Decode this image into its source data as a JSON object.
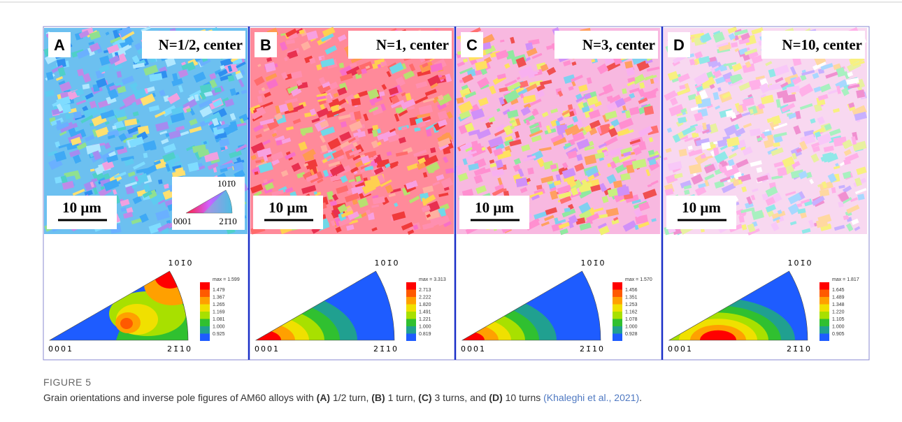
{
  "figure": {
    "panels": [
      {
        "letter": "A",
        "label": "N=1/2, center",
        "scale_bar": "10 μm",
        "ipf": {
          "top": "101̄0",
          "left": "0001",
          "right": "21̄10",
          "max": "max = 1.599",
          "levels": [
            "1.479",
            "1.367",
            "1.265",
            "1.169",
            "1.081",
            "1.000",
            "0.925"
          ]
        }
      },
      {
        "letter": "B",
        "label": "N=1, center",
        "scale_bar": "10 μm",
        "ipf": {
          "top": "101̄0",
          "left": "0001",
          "right": "21̄10",
          "max": "max = 3.313",
          "levels": [
            "2.713",
            "2.222",
            "1.820",
            "1.491",
            "1.221",
            "1.000",
            "0.819"
          ]
        }
      },
      {
        "letter": "C",
        "label": "N=3, center",
        "scale_bar": "10 μm",
        "ipf": {
          "top": "101̄0",
          "left": "0001",
          "right": "21̄10",
          "max": "max = 1.570",
          "levels": [
            "1.456",
            "1.351",
            "1.253",
            "1.162",
            "1.078",
            "1.000",
            "0.928"
          ]
        }
      },
      {
        "letter": "D",
        "label": "N=10, center",
        "scale_bar": "10 μm",
        "ipf": {
          "top": "101̄0",
          "left": "0001",
          "right": "21̄10",
          "max": "max = 1.817",
          "levels": [
            "1.645",
            "1.489",
            "1.348",
            "1.220",
            "1.105",
            "1.000",
            "0.905"
          ]
        }
      }
    ],
    "inset_key": {
      "top": "101̄0",
      "left": "0001",
      "right": "21̄10"
    }
  },
  "caption": {
    "label": "FIGURE 5",
    "parts": [
      "Grain orientations and inverse pole figures of AM60 alloys with ",
      "(A)",
      " 1/2 turn, ",
      "(B)",
      " 1 turn, ",
      "(C)",
      " 3 turns, and ",
      "(D)",
      " 10 turns ",
      "(Khaleghi et al., 2021)",
      "."
    ]
  }
}
